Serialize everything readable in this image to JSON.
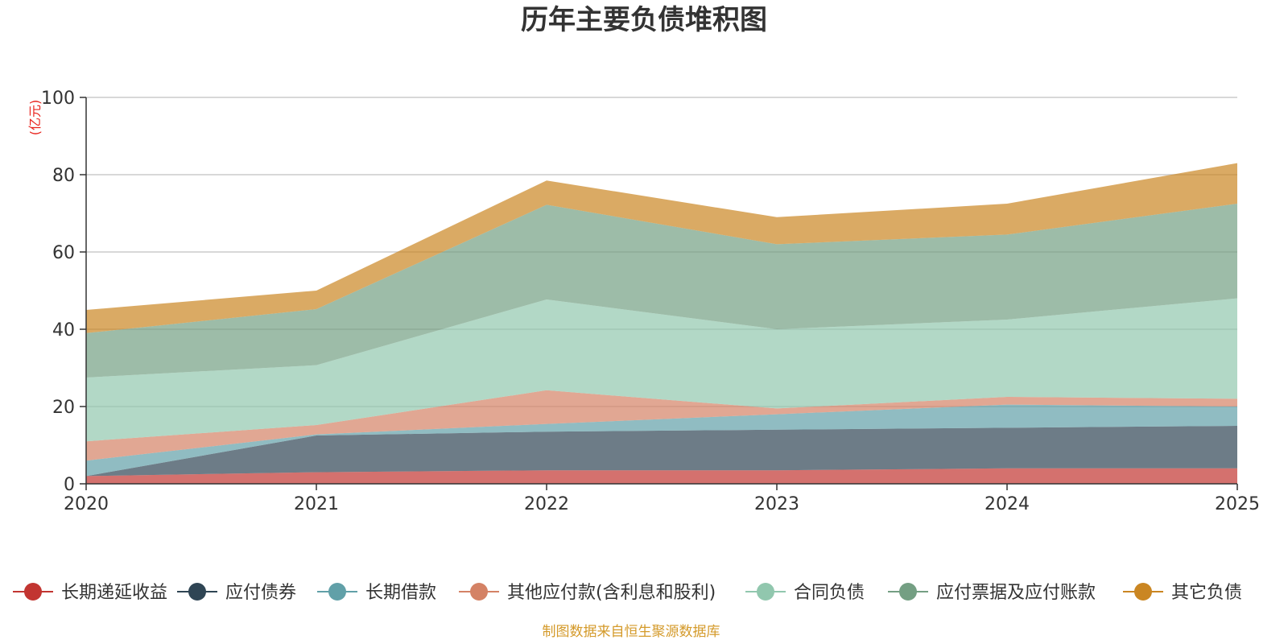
{
  "chart_data": {
    "type": "area",
    "stacked": true,
    "title": "历年主要负债堆积图",
    "unit_label": "(亿元)",
    "source": "制图数据来自恒生聚源数据库",
    "x": [
      "2020",
      "2021",
      "2022",
      "2023",
      "2024",
      "2025"
    ],
    "ylim": [
      0,
      100
    ],
    "yticks": [
      "0",
      "20",
      "40",
      "60",
      "80",
      "100"
    ],
    "grid": true,
    "legend_position": "bottom",
    "series": [
      {
        "name": "长期递延收益",
        "color": "#c23531",
        "values": [
          2,
          3,
          3.5,
          3.5,
          4,
          4
        ]
      },
      {
        "name": "应付债券",
        "color": "#2f4554",
        "values": [
          0,
          9.5,
          10,
          10.5,
          10.5,
          11
        ]
      },
      {
        "name": "长期借款",
        "color": "#61a0a8",
        "values": [
          4,
          0.3,
          2,
          4,
          6,
          5
        ]
      },
      {
        "name": "其他应付款(含利息和股利)",
        "color": "#d48265",
        "values": [
          5,
          2.4,
          8.7,
          1.5,
          2,
          2
        ]
      },
      {
        "name": "合同负债",
        "color": "#91c7ae",
        "values": [
          16.5,
          15.5,
          23.5,
          20.5,
          20,
          26
        ]
      },
      {
        "name": "应付票据及应付账款",
        "color": "#749f83",
        "values": [
          11.5,
          14.5,
          24.5,
          22,
          22,
          24.5
        ]
      },
      {
        "name": "其它负债",
        "color": "#ca8622",
        "values": [
          6,
          4.8,
          6.3,
          7,
          8,
          10.5
        ]
      }
    ]
  }
}
